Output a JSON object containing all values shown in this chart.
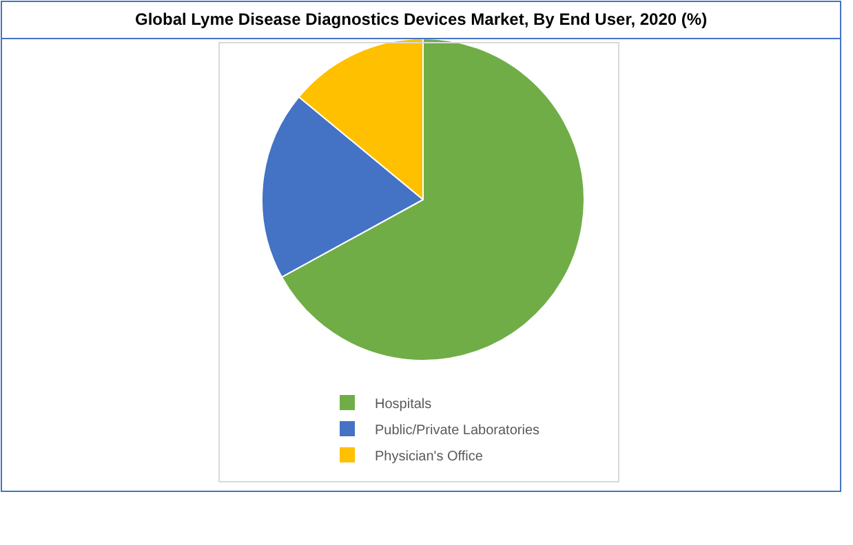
{
  "chart_data": {
    "type": "pie",
    "title": "Global Lyme Disease Diagnostics Devices Market, By End User, 2020 (%)",
    "categories": [
      "Hospitals",
      "Public/Private Laboratories",
      "Physician's Office"
    ],
    "values": [
      67,
      19,
      14
    ],
    "colors": [
      "#70ad47",
      "#4472c4",
      "#ffc000"
    ],
    "legend": "bottom"
  }
}
